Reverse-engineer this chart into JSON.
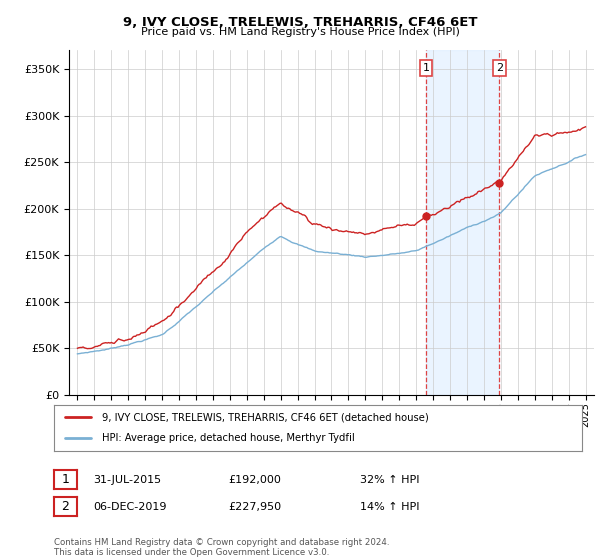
{
  "title": "9, IVY CLOSE, TRELEWIS, TREHARRIS, CF46 6ET",
  "subtitle": "Price paid vs. HM Land Registry's House Price Index (HPI)",
  "ylabel_ticks": [
    "£0",
    "£50K",
    "£100K",
    "£150K",
    "£200K",
    "£250K",
    "£300K",
    "£350K"
  ],
  "ytick_values": [
    0,
    50000,
    100000,
    150000,
    200000,
    250000,
    300000,
    350000
  ],
  "ylim": [
    0,
    370000
  ],
  "xlim_start": 1994.5,
  "xlim_end": 2025.5,
  "hpi_color": "#7ab0d4",
  "price_color": "#cc2222",
  "marker1_date": 2015.58,
  "marker2_date": 2019.92,
  "marker1_price": 192000,
  "marker2_price": 227950,
  "legend_line1": "9, IVY CLOSE, TRELEWIS, TREHARRIS, CF46 6ET (detached house)",
  "legend_line2": "HPI: Average price, detached house, Merthyr Tydfil",
  "annotation1_label": "1",
  "annotation1_date": "31-JUL-2015",
  "annotation1_price": "£192,000",
  "annotation1_hpi": "32% ↑ HPI",
  "annotation2_label": "2",
  "annotation2_date": "06-DEC-2019",
  "annotation2_price": "£227,950",
  "annotation2_hpi": "14% ↑ HPI",
  "footer": "Contains HM Land Registry data © Crown copyright and database right 2024.\nThis data is licensed under the Open Government Licence v3.0.",
  "bg_color": "#ffffff",
  "plot_bg_color": "#ffffff",
  "grid_color": "#cccccc",
  "shade_color": "#ddeeff"
}
